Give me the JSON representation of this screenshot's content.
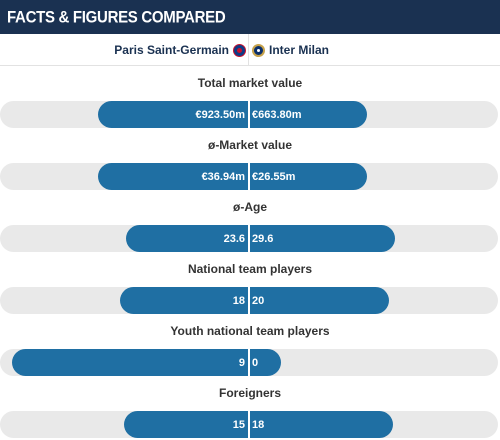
{
  "header": {
    "title": "FACTS & FIGURES COMPARED"
  },
  "clubs": {
    "home": {
      "name": "Paris Saint-Germain",
      "icon": "psg-crest-icon"
    },
    "away": {
      "name": "Inter Milan",
      "icon": "inter-crest-icon"
    }
  },
  "colors": {
    "header_bg": "#1a3151",
    "bar": "#1f6fa3",
    "track": "#e9e9e9"
  },
  "stats": [
    {
      "label": "Total market value",
      "home": "€923.50m",
      "away": "€663.80m",
      "home_value": 923.5,
      "away_value": 663.8
    },
    {
      "label": "ø-Market value",
      "home": "€36.94m",
      "away": "€26.55m",
      "home_value": 36.94,
      "away_value": 26.55
    },
    {
      "label": "ø-Age",
      "home": "23.6",
      "away": "29.6",
      "home_value": 23.6,
      "away_value": 29.6
    },
    {
      "label": "National team players",
      "home": "18",
      "away": "20",
      "home_value": 18,
      "away_value": 20
    },
    {
      "label": "Youth national team players",
      "home": "9",
      "away": "0",
      "home_value": 9,
      "away_value": 0
    },
    {
      "label": "Foreigners",
      "home": "15",
      "away": "18",
      "home_value": 15,
      "away_value": 18
    }
  ]
}
